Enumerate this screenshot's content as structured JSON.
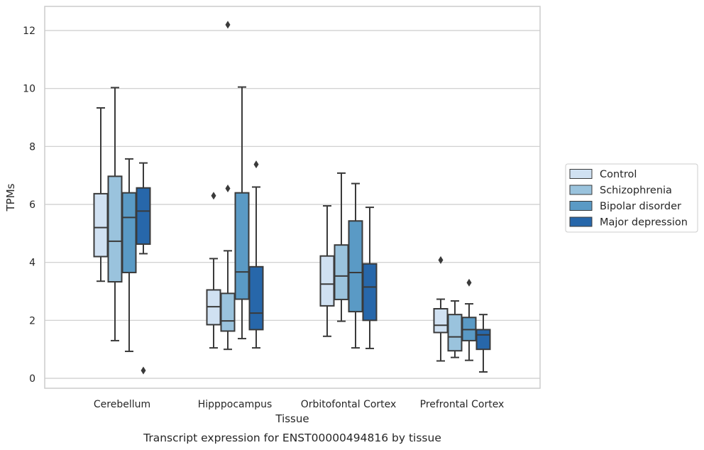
{
  "chart_data": {
    "type": "box",
    "caption": "Transcript expression for ENST00000494816 by tissue",
    "xlabel": "Tissue",
    "ylabel": "TPMs",
    "ylim": [
      -0.35,
      12.85
    ],
    "yticks": [
      0,
      2,
      4,
      6,
      8,
      10,
      12
    ],
    "ytick_labels": [
      "0",
      "2",
      "4",
      "6",
      "8",
      "10",
      "12"
    ],
    "grid": "horizontal",
    "legend_placement": "outside-right",
    "categories": [
      "Cerebellum",
      "Hipppocampus",
      "Orbitofontal Cortex",
      "Prefrontal Cortex"
    ],
    "series": [
      {
        "name": "Control",
        "color": "#d0e1f2",
        "boxes": [
          {
            "whisker_low": 3.35,
            "q1": 4.2,
            "median": 5.2,
            "q3": 6.37,
            "whisker_high": 9.33,
            "outliers": []
          },
          {
            "whisker_low": 1.05,
            "q1": 1.85,
            "median": 2.47,
            "q3": 3.05,
            "whisker_high": 4.13,
            "outliers": [
              6.3
            ]
          },
          {
            "whisker_low": 1.45,
            "q1": 2.5,
            "median": 3.25,
            "q3": 4.22,
            "whisker_high": 5.95,
            "outliers": []
          },
          {
            "whisker_low": 0.6,
            "q1": 1.58,
            "median": 1.83,
            "q3": 2.4,
            "whisker_high": 2.73,
            "outliers": [
              4.08
            ]
          }
        ]
      },
      {
        "name": "Schizophrenia",
        "color": "#9ac3dd",
        "boxes": [
          {
            "whisker_low": 1.3,
            "q1": 3.33,
            "median": 4.73,
            "q3": 6.97,
            "whisker_high": 10.03,
            "outliers": []
          },
          {
            "whisker_low": 1.0,
            "q1": 1.63,
            "median": 1.98,
            "q3": 2.93,
            "whisker_high": 4.4,
            "outliers": [
              6.55,
              12.2
            ]
          },
          {
            "whisker_low": 1.97,
            "q1": 2.72,
            "median": 3.53,
            "q3": 4.6,
            "whisker_high": 7.08,
            "outliers": []
          },
          {
            "whisker_low": 0.72,
            "q1": 0.95,
            "median": 1.43,
            "q3": 2.2,
            "whisker_high": 2.67,
            "outliers": []
          }
        ]
      },
      {
        "name": "Bipolar disorder",
        "color": "#5a9ac5",
        "boxes": [
          {
            "whisker_low": 0.93,
            "q1": 3.65,
            "median": 5.55,
            "q3": 6.4,
            "whisker_high": 7.57,
            "outliers": []
          },
          {
            "whisker_low": 1.37,
            "q1": 2.73,
            "median": 3.67,
            "q3": 6.4,
            "whisker_high": 10.05,
            "outliers": []
          },
          {
            "whisker_low": 1.05,
            "q1": 2.3,
            "median": 3.65,
            "q3": 5.43,
            "whisker_high": 6.72,
            "outliers": []
          },
          {
            "whisker_low": 0.62,
            "q1": 1.3,
            "median": 1.68,
            "q3": 2.1,
            "whisker_high": 2.57,
            "outliers": [
              3.3
            ]
          }
        ]
      },
      {
        "name": "Major depression",
        "color": "#2767aa",
        "boxes": [
          {
            "whisker_low": 4.3,
            "q1": 4.63,
            "median": 5.77,
            "q3": 6.57,
            "whisker_high": 7.43,
            "outliers": [
              0.27
            ]
          },
          {
            "whisker_low": 1.05,
            "q1": 1.68,
            "median": 2.25,
            "q3": 3.85,
            "whisker_high": 6.6,
            "outliers": [
              7.38
            ]
          },
          {
            "whisker_low": 1.03,
            "q1": 2.0,
            "median": 3.15,
            "q3": 3.95,
            "whisker_high": 5.9,
            "outliers": []
          },
          {
            "whisker_low": 0.22,
            "q1": 1.0,
            "median": 1.5,
            "q3": 1.68,
            "whisker_high": 2.2,
            "outliers": []
          }
        ]
      }
    ]
  }
}
